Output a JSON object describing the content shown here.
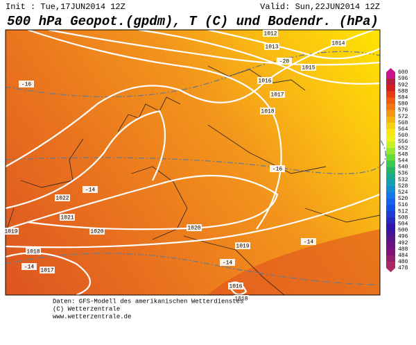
{
  "header": {
    "init": "Init : Tue,17JUN2014 12Z",
    "valid": "Valid: Sun,22JUN2014 12Z",
    "title": "500 hPa Geopot.(gpdm), T (C) und Bodendr. (hPa)"
  },
  "map_labels": [
    "1012",
    "1013",
    "1014",
    "-20",
    "1015",
    "1016",
    "1017",
    "1018",
    "-16",
    "-16",
    "-14",
    "1022",
    "1021",
    "1020",
    "1020",
    "1019",
    "-14",
    "1019",
    "1018",
    "-14",
    "1017",
    "-14",
    "1016",
    "1018"
  ],
  "colorbar": {
    "labels": [
      "600",
      "596",
      "592",
      "588",
      "584",
      "580",
      "576",
      "572",
      "568",
      "564",
      "560",
      "556",
      "552",
      "548",
      "544",
      "540",
      "536",
      "532",
      "528",
      "524",
      "520",
      "516",
      "512",
      "508",
      "504",
      "500",
      "496",
      "492",
      "488",
      "484",
      "480",
      "478"
    ]
  },
  "footer": [
    "Daten: GFS-Modell des amerikanischen Wetterdienstes",
    "(C) Wetterzentrale",
    "www.wetterzentrale.de"
  ]
}
